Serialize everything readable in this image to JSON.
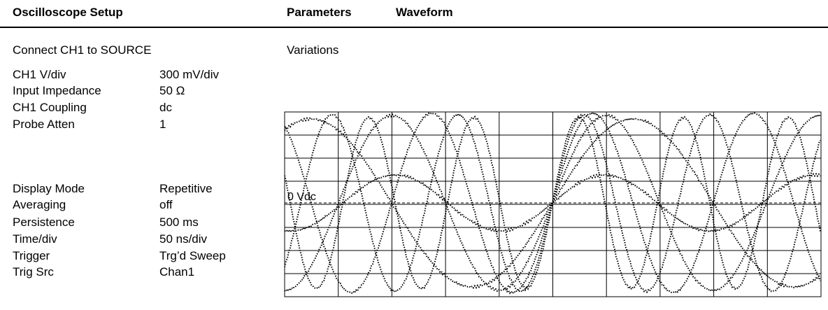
{
  "header": {
    "title": "Oscilloscope Setup",
    "columns": [
      "Parameters",
      "Waveform"
    ]
  },
  "setup": {
    "instruction": "Connect CH1 to SOURCE",
    "groups": [
      [
        [
          "CH1 V/div",
          "300 mV/div"
        ],
        [
          "Input Impedance",
          "50 Ω"
        ],
        [
          "CH1 Coupling",
          "dc"
        ],
        [
          "Probe Atten",
          "1"
        ]
      ],
      [
        [
          "Display Mode",
          "Repetitive"
        ],
        [
          "Averaging",
          "off"
        ],
        [
          "Persistence",
          "500 ms"
        ],
        [
          "Time/div",
          "50 ns/div"
        ],
        [
          "Trigger",
          "Trg’d Sweep"
        ],
        [
          "Trig Src",
          "Chan1"
        ]
      ]
    ]
  },
  "waveform": {
    "caption": "Variations",
    "reference_label": "0 Vdc"
  }
}
